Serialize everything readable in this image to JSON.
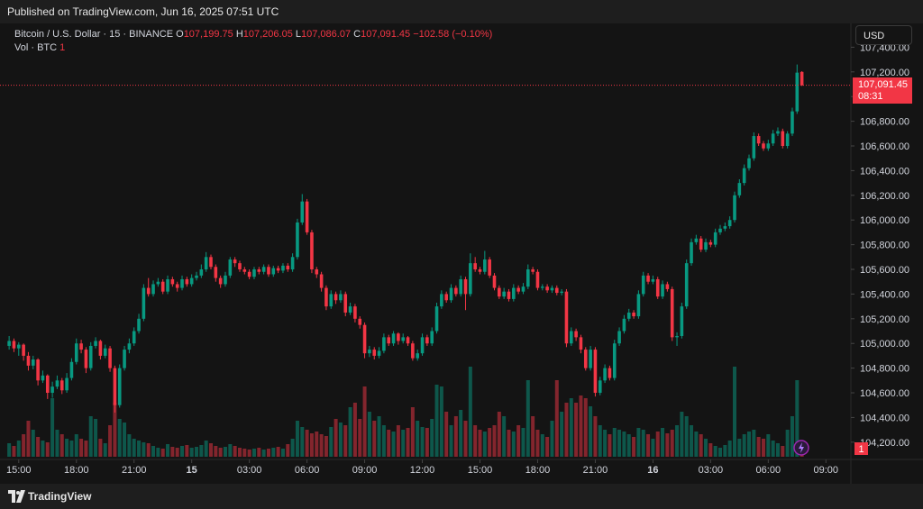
{
  "header": {
    "published": "Published on TradingView.com, Jun 16, 2025 07:51 UTC",
    "symbol": "Bitcoin / U.S. Dollar · 15 · BINANCE",
    "ohlc": [
      {
        "key": "O",
        "value": "107,199.75"
      },
      {
        "key": "H",
        "value": "107,206.05"
      },
      {
        "key": "L",
        "value": "107,086.07"
      },
      {
        "key": "C",
        "value": "107,091.45"
      }
    ],
    "change": "−102.58 (−0.10%)",
    "volume_label": "Vol · BTC",
    "volume_count": "1",
    "currency": "USD",
    "last_price": "107,091.45",
    "countdown": "08:31",
    "volume_pane": "1",
    "brand": "TradingView"
  },
  "chart_data": {
    "type": "candlestick",
    "up_color": "#089981",
    "down_color": "#f23645",
    "grid": false,
    "xlim": [
      -1.9,
      175.2
    ],
    "ylim": [
      104060,
      107600
    ],
    "xticks": [
      {
        "value": 2,
        "label": "15:00"
      },
      {
        "value": 14,
        "label": "18:00"
      },
      {
        "value": 26,
        "label": "21:00"
      },
      {
        "value": 38,
        "label": "15"
      },
      {
        "value": 50,
        "label": "03:00"
      },
      {
        "value": 62,
        "label": "06:00"
      },
      {
        "value": 74,
        "label": "09:00"
      },
      {
        "value": 86,
        "label": "12:00"
      },
      {
        "value": 98,
        "label": "15:00"
      },
      {
        "value": 110,
        "label": "18:00"
      },
      {
        "value": 122,
        "label": "21:00"
      },
      {
        "value": 134,
        "label": "16"
      },
      {
        "value": 146,
        "label": "03:00"
      },
      {
        "value": 158,
        "label": "06:00"
      },
      {
        "value": 170,
        "label": "09:00"
      }
    ],
    "yticks": [
      {
        "value": 104200,
        "label": "104,200.00"
      },
      {
        "value": 104400,
        "label": "104,400.00"
      },
      {
        "value": 104600,
        "label": "104,600.00"
      },
      {
        "value": 104800,
        "label": "104,800.00"
      },
      {
        "value": 105000,
        "label": "105,000.00"
      },
      {
        "value": 105200,
        "label": "105,200.00"
      },
      {
        "value": 105400,
        "label": "105,400.00"
      },
      {
        "value": 105600,
        "label": "105,600.00"
      },
      {
        "value": 105800,
        "label": "105,800.00"
      },
      {
        "value": 106000,
        "label": "106,000.00"
      },
      {
        "value": 106200,
        "label": "106,200.00"
      },
      {
        "value": 106400,
        "label": "106,400.00"
      },
      {
        "value": 106600,
        "label": "106,600.00"
      },
      {
        "value": 106800,
        "label": "106,800.00"
      },
      {
        "value": 107000,
        "label": "107,000.00"
      },
      {
        "value": 107200,
        "label": "107,200.00"
      },
      {
        "value": 107400,
        "label": "107,400.00"
      }
    ],
    "candles": [
      [
        104980,
        105060,
        104950,
        105020
      ],
      [
        105020,
        105040,
        104930,
        104960
      ],
      [
        104960,
        105010,
        104900,
        104990
      ],
      [
        104990,
        105000,
        104860,
        104900
      ],
      [
        104900,
        104930,
        104780,
        104820
      ],
      [
        104820,
        104900,
        104790,
        104870
      ],
      [
        104870,
        104880,
        104660,
        104700
      ],
      [
        104700,
        104780,
        104680,
        104740
      ],
      [
        104740,
        104750,
        104550,
        104600
      ],
      [
        104600,
        104690,
        104560,
        104650
      ],
      [
        104650,
        104740,
        104630,
        104700
      ],
      [
        104700,
        104720,
        104590,
        104620
      ],
      [
        104620,
        104760,
        104600,
        104720
      ],
      [
        104720,
        104880,
        104700,
        104850
      ],
      [
        104850,
        105040,
        104830,
        105000
      ],
      [
        105000,
        105030,
        104920,
        104950
      ],
      [
        104950,
        104970,
        104760,
        104800
      ],
      [
        104800,
        105010,
        104780,
        104980
      ],
      [
        104980,
        105050,
        104960,
        105020
      ],
      [
        105020,
        105030,
        104870,
        104900
      ],
      [
        104900,
        104990,
        104880,
        104960
      ],
      [
        104960,
        104980,
        104770,
        104800
      ],
      [
        104800,
        104820,
        104440,
        104500
      ],
      [
        104500,
        104830,
        104480,
        104800
      ],
      [
        104800,
        104980,
        104780,
        104950
      ],
      [
        104950,
        105040,
        104920,
        105000
      ],
      [
        105000,
        105130,
        104980,
        105100
      ],
      [
        105100,
        105240,
        105080,
        105200
      ],
      [
        105200,
        105480,
        105180,
        105450
      ],
      [
        105450,
        105530,
        105380,
        105400
      ],
      [
        105400,
        105510,
        105380,
        105480
      ],
      [
        105480,
        105530,
        105460,
        105500
      ],
      [
        105500,
        105520,
        105400,
        105420
      ],
      [
        105420,
        105550,
        105400,
        105520
      ],
      [
        105520,
        105540,
        105460,
        105480
      ],
      [
        105480,
        105500,
        105420,
        105450
      ],
      [
        105450,
        105550,
        105430,
        105520
      ],
      [
        105520,
        105540,
        105460,
        105480
      ],
      [
        105480,
        105560,
        105460,
        105530
      ],
      [
        105530,
        105580,
        105510,
        105550
      ],
      [
        105550,
        105640,
        105530,
        105600
      ],
      [
        105600,
        105740,
        105580,
        105700
      ],
      [
        105700,
        105720,
        105600,
        105620
      ],
      [
        105620,
        105640,
        105500,
        105530
      ],
      [
        105530,
        105550,
        105450,
        105480
      ],
      [
        105480,
        105580,
        105460,
        105550
      ],
      [
        105550,
        105700,
        105530,
        105680
      ],
      [
        105680,
        105700,
        105620,
        105650
      ],
      [
        105650,
        105670,
        105580,
        105600
      ],
      [
        105600,
        105620,
        105560,
        105580
      ],
      [
        105580,
        105600,
        105520,
        105540
      ],
      [
        105540,
        105620,
        105520,
        105600
      ],
      [
        105600,
        105620,
        105560,
        105580
      ],
      [
        105580,
        105640,
        105560,
        105620
      ],
      [
        105620,
        105640,
        105540,
        105560
      ],
      [
        105560,
        105630,
        105540,
        105610
      ],
      [
        105610,
        105630,
        105570,
        105590
      ],
      [
        105590,
        105650,
        105570,
        105630
      ],
      [
        105630,
        105650,
        105580,
        105600
      ],
      [
        105600,
        105730,
        105580,
        105700
      ],
      [
        105700,
        106010,
        105680,
        105980
      ],
      [
        105980,
        106210,
        105960,
        106150
      ],
      [
        106150,
        106170,
        105880,
        105900
      ],
      [
        105900,
        105920,
        105570,
        105600
      ],
      [
        105600,
        105620,
        105530,
        105560
      ],
      [
        105560,
        105580,
        105420,
        105450
      ],
      [
        105450,
        105470,
        105270,
        105300
      ],
      [
        105300,
        105430,
        105280,
        105400
      ],
      [
        105400,
        105420,
        105320,
        105350
      ],
      [
        105350,
        105430,
        105330,
        105400
      ],
      [
        105400,
        105420,
        105220,
        105250
      ],
      [
        105250,
        105330,
        105230,
        105300
      ],
      [
        105300,
        105320,
        105170,
        105200
      ],
      [
        105200,
        105220,
        105120,
        105150
      ],
      [
        105150,
        105170,
        104880,
        104920
      ],
      [
        104920,
        104980,
        104890,
        104950
      ],
      [
        104950,
        104970,
        104870,
        104900
      ],
      [
        104900,
        104970,
        104880,
        104940
      ],
      [
        104940,
        105080,
        104920,
        105050
      ],
      [
        105050,
        105070,
        104980,
        105000
      ],
      [
        105000,
        105100,
        104980,
        105080
      ],
      [
        105080,
        105090,
        104990,
        105020
      ],
      [
        105020,
        105080,
        105000,
        105050
      ],
      [
        105050,
        105060,
        104980,
        105000
      ],
      [
        105000,
        105020,
        104860,
        104880
      ],
      [
        104880,
        104950,
        104860,
        104920
      ],
      [
        104920,
        105080,
        104900,
        105050
      ],
      [
        105050,
        105070,
        104980,
        105000
      ],
      [
        105000,
        105130,
        104980,
        105100
      ],
      [
        105100,
        105330,
        105080,
        105300
      ],
      [
        105300,
        105430,
        105280,
        105400
      ],
      [
        105400,
        105420,
        105330,
        105350
      ],
      [
        105350,
        105480,
        105330,
        105450
      ],
      [
        105450,
        105470,
        105380,
        105400
      ],
      [
        105400,
        105550,
        105380,
        105520
      ],
      [
        105520,
        105540,
        105270,
        105400
      ],
      [
        105400,
        105730,
        105380,
        105650
      ],
      [
        105650,
        105700,
        105580,
        105600
      ],
      [
        105600,
        105620,
        105560,
        105580
      ],
      [
        105580,
        105750,
        105560,
        105680
      ],
      [
        105680,
        105700,
        105530,
        105550
      ],
      [
        105550,
        105570,
        105430,
        105450
      ],
      [
        105450,
        105470,
        105360,
        105380
      ],
      [
        105380,
        105450,
        105360,
        105420
      ],
      [
        105420,
        105440,
        105340,
        105360
      ],
      [
        105360,
        105480,
        105340,
        105450
      ],
      [
        105450,
        105470,
        105400,
        105420
      ],
      [
        105420,
        105490,
        105400,
        105460
      ],
      [
        105460,
        105640,
        105440,
        105600
      ],
      [
        105600,
        105620,
        105560,
        105580
      ],
      [
        105580,
        105600,
        105430,
        105450
      ],
      [
        105450,
        105480,
        105430,
        105460
      ],
      [
        105460,
        105480,
        105410,
        105430
      ],
      [
        105430,
        105470,
        105410,
        105450
      ],
      [
        105450,
        105470,
        105390,
        105410
      ],
      [
        105410,
        105440,
        105390,
        105420
      ],
      [
        105420,
        105440,
        104970,
        105000
      ],
      [
        105000,
        105130,
        104980,
        105100
      ],
      [
        105100,
        105120,
        105020,
        105050
      ],
      [
        105050,
        105070,
        104920,
        104950
      ],
      [
        104950,
        104970,
        104780,
        104800
      ],
      [
        104800,
        104980,
        104780,
        104950
      ],
      [
        104950,
        104970,
        104570,
        104600
      ],
      [
        104600,
        104730,
        104580,
        104700
      ],
      [
        104700,
        104830,
        104680,
        104800
      ],
      [
        104800,
        104820,
        104700,
        104720
      ],
      [
        104720,
        105030,
        104700,
        105000
      ],
      [
        105000,
        105130,
        104980,
        105100
      ],
      [
        105100,
        105230,
        105080,
        105200
      ],
      [
        105200,
        105280,
        105180,
        105250
      ],
      [
        105250,
        105270,
        105200,
        105220
      ],
      [
        105220,
        105430,
        105200,
        105400
      ],
      [
        105400,
        105580,
        105380,
        105550
      ],
      [
        105550,
        105570,
        105480,
        105500
      ],
      [
        105500,
        105550,
        105480,
        105520
      ],
      [
        105520,
        105540,
        105360,
        105380
      ],
      [
        105380,
        105510,
        105360,
        105480
      ],
      [
        105480,
        105500,
        105420,
        105440
      ],
      [
        105440,
        105460,
        105020,
        105050
      ],
      [
        105050,
        105090,
        104980,
        105060
      ],
      [
        105060,
        105330,
        105040,
        105300
      ],
      [
        105300,
        105680,
        105280,
        105650
      ],
      [
        105650,
        105850,
        105630,
        105820
      ],
      [
        105820,
        105880,
        105800,
        105850
      ],
      [
        105850,
        105870,
        105740,
        105760
      ],
      [
        105760,
        105850,
        105740,
        105820
      ],
      [
        105820,
        105840,
        105780,
        105800
      ],
      [
        105800,
        105930,
        105780,
        105900
      ],
      [
        105900,
        105960,
        105880,
        105930
      ],
      [
        105930,
        105980,
        105910,
        105950
      ],
      [
        105950,
        106030,
        105930,
        106000
      ],
      [
        106000,
        106230,
        105980,
        106200
      ],
      [
        106200,
        106330,
        106180,
        106300
      ],
      [
        106300,
        106450,
        106280,
        106420
      ],
      [
        106420,
        106530,
        106400,
        106500
      ],
      [
        106500,
        106710,
        106480,
        106680
      ],
      [
        106680,
        106700,
        106600,
        106620
      ],
      [
        106620,
        106640,
        106560,
        106580
      ],
      [
        106580,
        106650,
        106560,
        106620
      ],
      [
        106620,
        106730,
        106600,
        106700
      ],
      [
        106700,
        106750,
        106680,
        106720
      ],
      [
        106720,
        106740,
        106580,
        106600
      ],
      [
        106600,
        106720,
        106580,
        106700
      ],
      [
        106700,
        106910,
        106680,
        106880
      ],
      [
        106880,
        107260,
        106860,
        107194.03
      ],
      [
        107199.75,
        107206.05,
        107086.07,
        107091.45
      ]
    ],
    "volume": [
      150,
      120,
      180,
      250,
      400,
      300,
      220,
      180,
      160,
      650,
      300,
      250,
      200,
      180,
      250,
      200,
      180,
      450,
      420,
      200,
      150,
      350,
      600,
      420,
      380,
      250,
      200,
      180,
      160,
      150,
      120,
      100,
      90,
      140,
      110,
      100,
      120,
      130,
      100,
      110,
      130,
      180,
      150,
      120,
      100,
      110,
      140,
      120,
      100,
      90,
      80,
      90,
      100,
      80,
      90,
      100,
      110,
      90,
      140,
      200,
      400,
      330,
      300,
      260,
      280,
      250,
      230,
      330,
      420,
      380,
      350,
      550,
      600,
      420,
      780,
      500,
      400,
      450,
      350,
      300,
      280,
      350,
      300,
      320,
      550,
      400,
      330,
      320,
      420,
      800,
      780,
      500,
      350,
      450,
      520,
      400,
      1000,
      350,
      300,
      280,
      320,
      350,
      500,
      450,
      300,
      280,
      350,
      320,
      850,
      450,
      300,
      250,
      220,
      400,
      850,
      500,
      600,
      650,
      600,
      680,
      650,
      560,
      450,
      350,
      300,
      250,
      320,
      300,
      280,
      250,
      220,
      320,
      300,
      250,
      200,
      280,
      320,
      260,
      300,
      350,
      500,
      450,
      350,
      280,
      250,
      200,
      150,
      120,
      100,
      130,
      180,
      1000,
      200,
      250,
      280,
      300,
      220,
      200,
      250,
      180,
      150,
      120,
      300,
      450,
      850,
      120
    ]
  }
}
